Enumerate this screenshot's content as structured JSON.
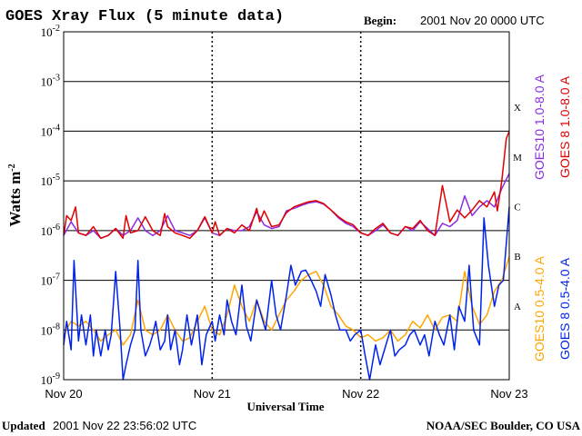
{
  "chart_data": {
    "type": "line",
    "title": "GOES Xray Flux (5 minute data)",
    "begin_label": "Begin:",
    "begin_value": "2001 Nov 20 0000 UTC",
    "xlabel": "Universal Time",
    "ylabel": "Watts m",
    "ylabel_sup": "-2",
    "x_ticks": [
      "Nov 20",
      "Nov 21",
      "Nov 22",
      "Nov 23"
    ],
    "xlim_days": [
      0,
      3
    ],
    "y_scale": "log",
    "ylim": [
      1e-09,
      0.01
    ],
    "y_ticks": [
      {
        "base": "10",
        "exp": "-2"
      },
      {
        "base": "10",
        "exp": "-3"
      },
      {
        "base": "10",
        "exp": "-4"
      },
      {
        "base": "10",
        "exp": "-5"
      },
      {
        "base": "10",
        "exp": "-6"
      },
      {
        "base": "10",
        "exp": "-7"
      },
      {
        "base": "10",
        "exp": "-8"
      },
      {
        "base": "10",
        "exp": "-9"
      }
    ],
    "flare_classes": [
      "X",
      "M",
      "C",
      "B",
      "A"
    ],
    "grid": true,
    "series": [
      {
        "name": "GOES10 1.0-8.0 A",
        "color": "#8a2be2",
        "x": [
          0,
          0.05,
          0.1,
          0.15,
          0.2,
          0.25,
          0.3,
          0.35,
          0.4,
          0.45,
          0.5,
          0.55,
          0.6,
          0.65,
          0.7,
          0.75,
          0.8,
          0.85,
          0.9,
          0.95,
          1.0,
          1.05,
          1.1,
          1.15,
          1.2,
          1.25,
          1.3,
          1.35,
          1.4,
          1.45,
          1.5,
          1.55,
          1.6,
          1.65,
          1.7,
          1.75,
          1.8,
          1.85,
          1.9,
          1.95,
          2.0,
          2.05,
          2.1,
          2.15,
          2.2,
          2.25,
          2.3,
          2.35,
          2.4,
          2.45,
          2.5,
          2.55,
          2.6,
          2.65,
          2.7,
          2.75,
          2.8,
          2.85,
          2.9,
          2.95,
          3.0
        ],
        "y": [
          8e-07,
          1.5e-06,
          9e-07,
          8e-07,
          1e-06,
          7e-07,
          8e-07,
          1.1e-06,
          8e-07,
          1e-06,
          1.8e-06,
          1e-06,
          8e-07,
          1e-06,
          2e-06,
          1e-06,
          9e-07,
          8e-07,
          1e-06,
          1.8e-06,
          9e-07,
          8e-07,
          1.1e-06,
          1e-06,
          1e-06,
          1.2e-06,
          2.4e-06,
          1.3e-06,
          1.1e-06,
          1.2e-06,
          2.5e-06,
          2.8e-06,
          3.2e-06,
          3.6e-06,
          3.8e-06,
          3.4e-06,
          2.6e-06,
          1.8e-06,
          1.4e-06,
          1.2e-06,
          9e-07,
          8e-07,
          1e-06,
          1.3e-06,
          9e-07,
          8e-07,
          1.2e-06,
          1e-06,
          1.5e-06,
          1.1e-06,
          8e-07,
          1.4e-06,
          1.2e-06,
          1.6e-06,
          5e-06,
          2e-06,
          3e-06,
          4e-06,
          3e-06,
          7e-06,
          1.4e-05
        ]
      },
      {
        "name": "GOES 8 1.0-8.0 A",
        "color": "#e00000",
        "x": [
          0,
          0.02,
          0.05,
          0.08,
          0.1,
          0.15,
          0.2,
          0.25,
          0.3,
          0.35,
          0.4,
          0.42,
          0.45,
          0.5,
          0.55,
          0.6,
          0.65,
          0.68,
          0.7,
          0.75,
          0.8,
          0.85,
          0.9,
          0.95,
          1.0,
          1.02,
          1.05,
          1.1,
          1.15,
          1.2,
          1.25,
          1.3,
          1.32,
          1.35,
          1.4,
          1.45,
          1.5,
          1.55,
          1.6,
          1.65,
          1.7,
          1.75,
          1.8,
          1.85,
          1.9,
          1.95,
          2.0,
          2.05,
          2.1,
          2.15,
          2.2,
          2.25,
          2.3,
          2.35,
          2.4,
          2.45,
          2.5,
          2.55,
          2.58,
          2.6,
          2.65,
          2.7,
          2.75,
          2.8,
          2.85,
          2.9,
          2.92,
          2.95,
          2.98,
          3.0
        ],
        "y": [
          8e-07,
          2e-06,
          1.6e-06,
          3e-06,
          9e-07,
          8e-07,
          1.2e-06,
          7e-07,
          8e-07,
          1.1e-06,
          7e-07,
          2e-06,
          9e-07,
          1e-06,
          1.9e-06,
          1e-06,
          8e-07,
          2.2e-06,
          1.2e-06,
          9e-07,
          8e-07,
          7e-07,
          1e-06,
          1.9e-06,
          9e-07,
          1.5e-06,
          8e-07,
          1.1e-06,
          9e-07,
          1.3e-06,
          1e-06,
          2.8e-06,
          1.5e-06,
          2.5e-06,
          1.2e-06,
          1.3e-06,
          2.3e-06,
          3e-06,
          3.4e-06,
          3.8e-06,
          4e-06,
          3.5e-06,
          2.6e-06,
          1.9e-06,
          1.5e-06,
          1.3e-06,
          9e-07,
          8e-07,
          1.1e-06,
          1.4e-06,
          9e-07,
          8e-07,
          1.2e-06,
          1.1e-06,
          1.6e-06,
          1e-06,
          8e-07,
          8e-06,
          3e-06,
          1.5e-06,
          2.6e-06,
          1.8e-06,
          2.6e-06,
          4e-06,
          3e-06,
          6e-06,
          2.5e-06,
          1e-05,
          7e-05,
          0.0001
        ]
      },
      {
        "name": "GOES10 0.5-4.0 A",
        "color": "#ffa500",
        "x": [
          0,
          0.05,
          0.1,
          0.15,
          0.2,
          0.25,
          0.3,
          0.35,
          0.4,
          0.45,
          0.5,
          0.55,
          0.6,
          0.65,
          0.7,
          0.75,
          0.8,
          0.85,
          0.9,
          0.95,
          1.0,
          1.05,
          1.1,
          1.15,
          1.2,
          1.25,
          1.3,
          1.35,
          1.4,
          1.45,
          1.5,
          1.55,
          1.6,
          1.65,
          1.7,
          1.75,
          1.8,
          1.85,
          1.9,
          1.95,
          2.0,
          2.05,
          2.1,
          2.15,
          2.2,
          2.25,
          2.3,
          2.35,
          2.4,
          2.45,
          2.5,
          2.55,
          2.6,
          2.65,
          2.7,
          2.75,
          2.8,
          2.85,
          2.9,
          2.95,
          3.0
        ],
        "y": [
          8e-09,
          1.5e-08,
          1.2e-08,
          1.5e-08,
          1e-08,
          6e-09,
          8e-09,
          1e-08,
          5e-09,
          8e-09,
          4e-08,
          1e-08,
          8e-09,
          1e-08,
          2e-08,
          1e-08,
          6e-09,
          7e-09,
          1.5e-08,
          3e-08,
          1e-08,
          8e-09,
          2e-08,
          8e-08,
          3e-08,
          1.5e-08,
          4e-08,
          1.5e-08,
          1e-08,
          2e-08,
          4e-08,
          6e-08,
          1e-07,
          1.3e-07,
          1.5e-07,
          8e-08,
          3e-08,
          2e-08,
          1.2e-08,
          1e-08,
          7e-09,
          8e-09,
          6e-09,
          7e-09,
          1e-08,
          6e-09,
          8e-09,
          1.5e-08,
          1.1e-08,
          2e-08,
          1e-08,
          1.8e-08,
          2e-08,
          1.5e-08,
          1.5e-07,
          3e-08,
          1.3e-08,
          2e-08,
          6e-08,
          1e-07,
          3e-07
        ]
      },
      {
        "name": "GOES 8 0.5-4.0 A",
        "color": "#0022ee",
        "x": [
          0,
          0.02,
          0.05,
          0.07,
          0.1,
          0.12,
          0.15,
          0.18,
          0.2,
          0.22,
          0.25,
          0.28,
          0.3,
          0.32,
          0.35,
          0.38,
          0.4,
          0.42,
          0.45,
          0.48,
          0.5,
          0.52,
          0.55,
          0.58,
          0.6,
          0.62,
          0.65,
          0.68,
          0.7,
          0.72,
          0.75,
          0.78,
          0.8,
          0.83,
          0.86,
          0.9,
          0.93,
          0.96,
          1.0,
          1.02,
          1.05,
          1.08,
          1.1,
          1.13,
          1.16,
          1.2,
          1.23,
          1.26,
          1.3,
          1.33,
          1.36,
          1.4,
          1.43,
          1.46,
          1.5,
          1.53,
          1.56,
          1.6,
          1.63,
          1.66,
          1.7,
          1.73,
          1.76,
          1.8,
          1.83,
          1.86,
          1.9,
          1.93,
          1.96,
          2.0,
          2.03,
          2.06,
          2.1,
          2.13,
          2.16,
          2.2,
          2.23,
          2.26,
          2.3,
          2.33,
          2.36,
          2.4,
          2.43,
          2.46,
          2.5,
          2.53,
          2.56,
          2.6,
          2.63,
          2.66,
          2.7,
          2.73,
          2.76,
          2.8,
          2.83,
          2.86,
          2.9,
          2.93,
          2.96,
          3.0
        ],
        "y": [
          5e-09,
          1.5e-08,
          4e-09,
          2.5e-07,
          6e-09,
          2e-08,
          5e-09,
          2e-08,
          3e-09,
          1e-08,
          3e-09,
          1e-08,
          4e-09,
          8e-09,
          1.5e-07,
          1e-08,
          1e-09,
          2e-09,
          5e-09,
          1e-08,
          2.5e-07,
          1e-08,
          3e-09,
          5e-09,
          8e-09,
          1.5e-08,
          4e-09,
          6e-09,
          2e-08,
          4e-09,
          1e-08,
          2e-09,
          4e-09,
          2e-08,
          5e-09,
          2e-08,
          2e-09,
          8e-09,
          1.5e-08,
          6e-09,
          2e-08,
          8e-09,
          4e-08,
          1.5e-08,
          8e-09,
          8e-08,
          1.2e-08,
          6e-09,
          4e-08,
          2e-08,
          1e-08,
          1e-07,
          2e-08,
          1e-08,
          5e-08,
          2e-07,
          8e-08,
          1.5e-07,
          1.6e-07,
          1.1e-07,
          6e-08,
          3e-08,
          1.3e-07,
          5e-08,
          2e-08,
          1e-08,
          1e-08,
          6e-09,
          8e-09,
          1e-08,
          3e-09,
          1e-09,
          5e-09,
          2e-09,
          4e-09,
          1e-08,
          3e-09,
          4e-09,
          5e-09,
          8e-09,
          1e-08,
          5e-09,
          8e-09,
          3e-09,
          1.5e-08,
          8e-09,
          5e-09,
          2e-08,
          4e-09,
          3e-08,
          1.5e-08,
          2e-07,
          1e-08,
          5e-09,
          1.8e-06,
          2e-07,
          3e-08,
          8e-08,
          1e-07,
          3e-06
        ]
      }
    ]
  },
  "footer": {
    "updated_label": "Updated",
    "updated_value": "2001 Nov 22 23:56:02 UTC",
    "credit": "NOAA/SEC Boulder, CO USA"
  }
}
